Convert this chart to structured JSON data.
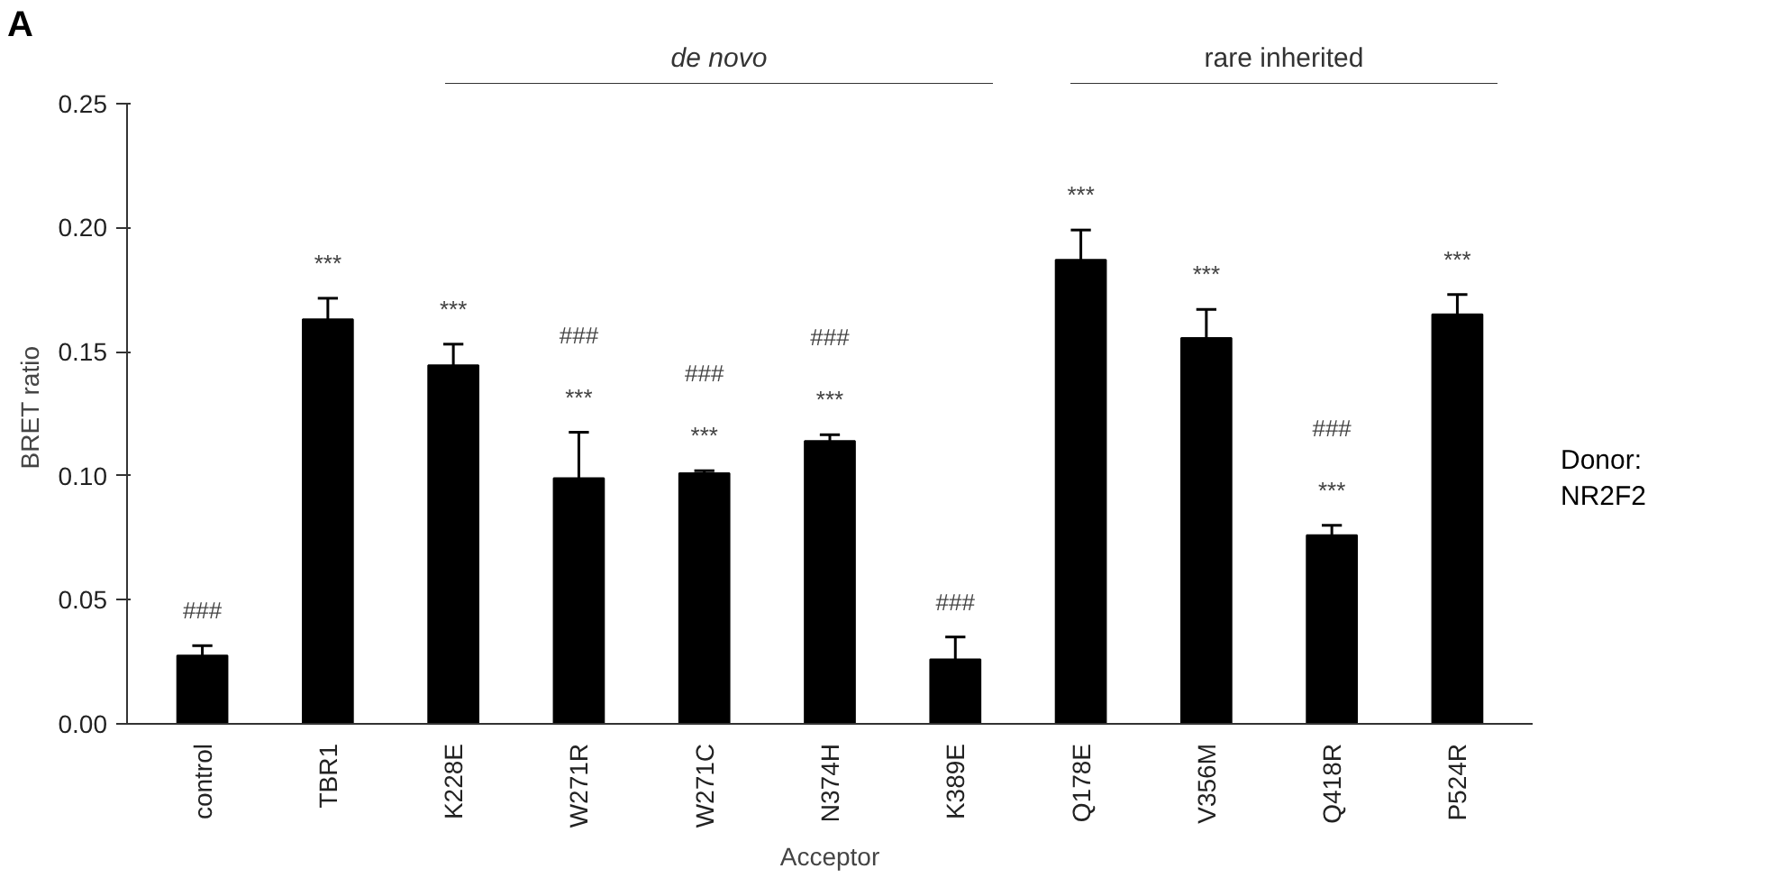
{
  "chart_data": {
    "type": "bar",
    "xlabel": "Acceptor",
    "ylabel": "BRET ratio",
    "categories": [
      "control",
      "TBR1",
      "K228E",
      "W271R",
      "W271C",
      "N374H",
      "K389E",
      "Q178E",
      "V356M",
      "Q418R",
      "P524R"
    ],
    "values": [
      0.0275,
      0.163,
      0.1445,
      0.099,
      0.101,
      0.114,
      0.026,
      0.187,
      0.1555,
      0.076,
      0.165
    ],
    "errors": [
      [
        0.0275,
        0.0315
      ],
      [
        0.163,
        0.1715
      ],
      [
        0.1445,
        0.153
      ],
      [
        0.099,
        0.1175
      ],
      [
        0.101,
        0.102
      ],
      [
        0.114,
        0.1165
      ],
      [
        0.026,
        0.035
      ],
      [
        0.187,
        0.199
      ],
      [
        0.1555,
        0.167
      ],
      [
        0.076,
        0.08
      ],
      [
        0.165,
        0.173
      ]
    ],
    "value_labels": [
      "###",
      "***",
      "***",
      "###\n***",
      "###\n***",
      "###\n***",
      "###",
      "***",
      "***",
      "###\n***",
      "***"
    ],
    "color": "#000000",
    "ylim": [
      0,
      0.25
    ],
    "yticks": [
      {
        "value": 0,
        "label": "0.00"
      },
      {
        "value": 0.05,
        "label": "0.05"
      },
      {
        "value": 0.1,
        "label": "0.10"
      },
      {
        "value": 0.15,
        "label": "0.15"
      },
      {
        "value": 0.2,
        "label": "0.20"
      },
      {
        "value": 0.25,
        "label": "0.25"
      }
    ],
    "grid": false,
    "annotations": [
      "A",
      "de novo",
      "rare inherited",
      "Donor:\nNR2F2"
    ]
  }
}
